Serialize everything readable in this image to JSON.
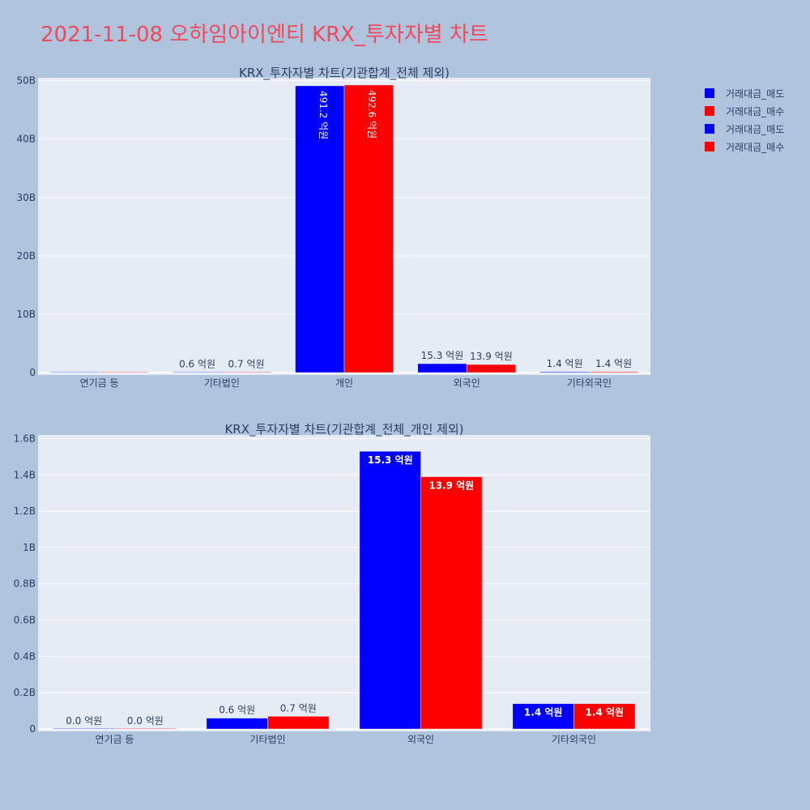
{
  "title": "2021-11-08 오하임아이엔티 KRX_투자자별 차트",
  "legend": [
    {
      "label": "거래대금_매도",
      "color": "#0000ff"
    },
    {
      "label": "거래대금_매수",
      "color": "#ff0000"
    },
    {
      "label": "거래대금_매도",
      "color": "#0000ff"
    },
    {
      "label": "거래대금_매수",
      "color": "#ff0000"
    }
  ],
  "chart_data": [
    {
      "type": "bar",
      "title": "KRX_투자자별 차트(기관합계_전체 제외)",
      "categories": [
        "연기금 등",
        "기타법인",
        "개인",
        "외국인",
        "기타외국인"
      ],
      "ylim": [
        0,
        50500000000
      ],
      "yticks": [
        0,
        10000000000,
        20000000000,
        30000000000,
        40000000000,
        50000000000
      ],
      "yticklabels": [
        "0",
        "10B",
        "20B",
        "30B",
        "40B",
        "50B"
      ],
      "grid": true,
      "legend_position": "top-right",
      "series": [
        {
          "name": "거래대금_매도",
          "color": "#0000ff",
          "values": [
            0,
            60000000,
            49120000000,
            1530000000,
            140000000
          ],
          "labels": [
            "",
            "0.6 억원",
            "491.2 억원",
            "15.3 억원",
            "1.4 억원"
          ]
        },
        {
          "name": "거래대금_매수",
          "color": "#ff0000",
          "values": [
            0,
            70000000,
            49260000000,
            1390000000,
            140000000
          ],
          "labels": [
            "",
            "0.7 억원",
            "492.6 억원",
            "13.9 억원",
            "1.4 억원"
          ]
        }
      ]
    },
    {
      "type": "bar",
      "title": "KRX_투자자별 차트(기관합계_전체_개인 제외)",
      "categories": [
        "연기금 등",
        "기타법인",
        "외국인",
        "기타외국인"
      ],
      "ylim": [
        0,
        1620000000
      ],
      "yticks": [
        0,
        200000000,
        400000000,
        600000000,
        800000000,
        1000000000,
        1200000000,
        1400000000,
        1600000000
      ],
      "yticklabels": [
        "0",
        "0.2B",
        "0.4B",
        "0.6B",
        "0.8B",
        "1B",
        "1.2B",
        "1.4B",
        "1.6B"
      ],
      "grid": true,
      "series": [
        {
          "name": "거래대금_매도",
          "color": "#0000ff",
          "values": [
            0,
            60000000,
            1530000000,
            140000000
          ],
          "labels": [
            "0.0 억원",
            "0.6 억원",
            "15.3 억원",
            "1.4 억원"
          ]
        },
        {
          "name": "거래대금_매수",
          "color": "#ff0000",
          "values": [
            0,
            70000000,
            1390000000,
            140000000
          ],
          "labels": [
            "0.0 억원",
            "0.7 억원",
            "13.9 억원",
            "1.4 억원"
          ]
        }
      ]
    }
  ]
}
